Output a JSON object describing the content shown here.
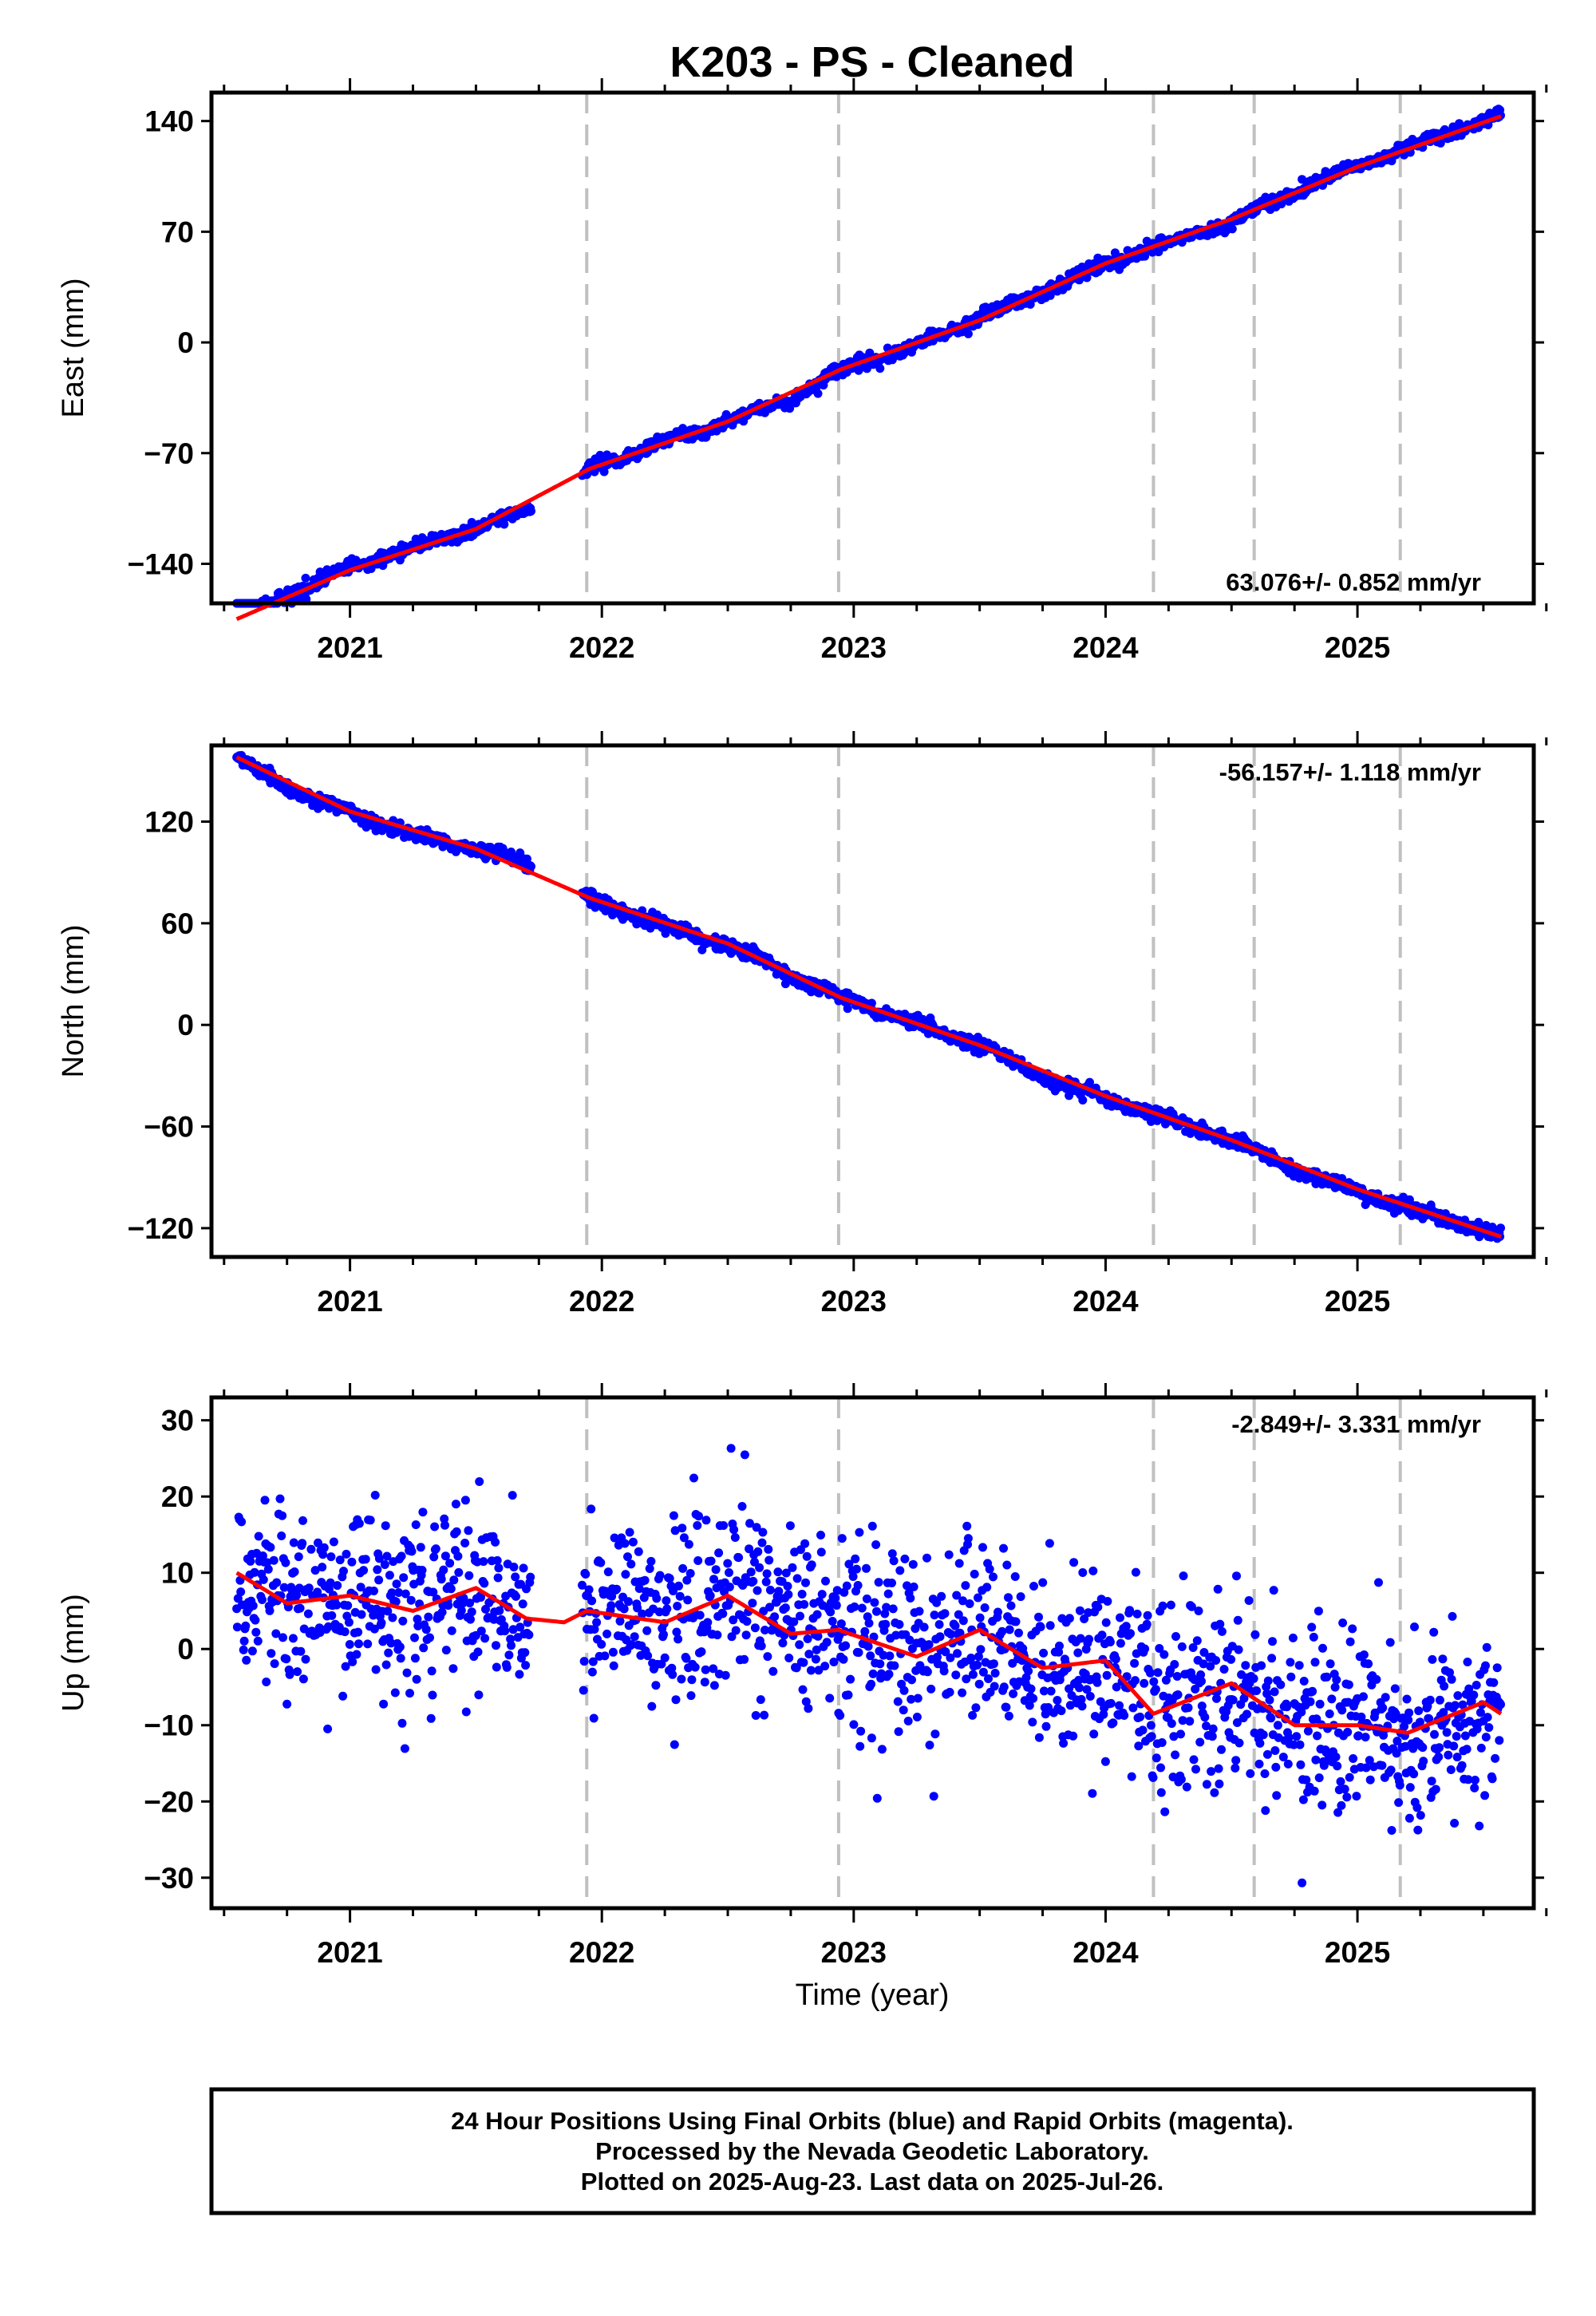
{
  "title": "K203  - PS - Cleaned",
  "xlabel": "Time (year)",
  "x_tick_labels": [
    "2021",
    "2022",
    "2023",
    "2024",
    "2025"
  ],
  "footer": {
    "line1": "24 Hour Positions Using Final Orbits (blue) and Rapid Orbits (magenta).",
    "line2": "Processed by the Nevada Geodetic Laboratory.",
    "line3": "Plotted on 2025-Aug-23. Last data on 2025-Jul-26."
  },
  "colors": {
    "points": "#0000ff",
    "fit": "#ff0000",
    "breaks": "#c0c0c0",
    "axes": "#000000"
  },
  "chart_data": [
    {
      "type": "scatter",
      "ylabel": "East (mm)",
      "rate_label": "63.076+/- 0.852 mm/yr",
      "xlim": [
        2020.45,
        2025.7
      ],
      "ylim": [
        -165,
        158
      ],
      "yticks": [
        -140,
        -70,
        0,
        70,
        140
      ],
      "y_tick_labels": [
        "−140",
        "−70",
        "0",
        "70",
        "140"
      ],
      "equipment_changes": [
        2021.94,
        2022.94,
        2024.19,
        2024.59,
        2025.17
      ],
      "data_gap": [
        2021.72,
        2021.92
      ],
      "series": [
        {
          "role": "observations",
          "x": [
            2020.55,
            2020.75,
            2021.0,
            2021.25,
            2021.5,
            2021.7,
            2021.95,
            2022.25,
            2022.5,
            2022.75,
            2022.95,
            2023.25,
            2023.5,
            2023.75,
            2024.0,
            2024.25,
            2024.5,
            2024.75,
            2025.0,
            2025.25,
            2025.5,
            2025.57
          ],
          "y": [
            -175,
            -160,
            -142,
            -130,
            -118,
            -105,
            -80,
            -63,
            -50,
            -36,
            -17,
            -2,
            16,
            32,
            50,
            63,
            76,
            95,
            112,
            126,
            140,
            144
          ]
        },
        {
          "role": "fit",
          "x": [
            2020.55,
            2021.0,
            2021.5,
            2021.95,
            2022.5,
            2022.95,
            2023.5,
            2024.0,
            2024.5,
            2025.0,
            2025.57
          ],
          "y": [
            -175,
            -144,
            -118,
            -80,
            -50,
            -17,
            14,
            50,
            78,
            111,
            143
          ]
        }
      ]
    },
    {
      "type": "scatter",
      "ylabel": "North (mm)",
      "rate_label": "-56.157+/- 1.118 mm/yr",
      "xlim": [
        2020.45,
        2025.7
      ],
      "ylim": [
        -137,
        165
      ],
      "yticks": [
        -120,
        -60,
        0,
        60,
        120
      ],
      "y_tick_labels": [
        "−120",
        "−60",
        "0",
        "60",
        "120"
      ],
      "equipment_changes": [
        2021.94,
        2022.94,
        2024.19,
        2024.59,
        2025.17
      ],
      "data_gap": [
        2021.72,
        2021.92
      ],
      "series": [
        {
          "role": "observations",
          "x": [
            2020.55,
            2020.75,
            2021.0,
            2021.25,
            2021.5,
            2021.7,
            2021.95,
            2022.25,
            2022.5,
            2022.75,
            2022.95,
            2023.25,
            2023.5,
            2023.75,
            2024.0,
            2024.25,
            2024.5,
            2024.75,
            2025.0,
            2025.25,
            2025.5,
            2025.57
          ],
          "y": [
            158,
            140,
            126,
            112,
            104,
            95,
            75,
            58,
            47,
            30,
            16,
            0,
            -12,
            -31,
            -43,
            -56,
            -68,
            -85,
            -98,
            -111,
            -121,
            -125
          ]
        },
        {
          "role": "fit",
          "x": [
            2020.55,
            2021.0,
            2021.5,
            2021.95,
            2022.5,
            2022.95,
            2023.5,
            2024.0,
            2024.5,
            2025.0,
            2025.57
          ],
          "y": [
            158,
            126,
            104,
            75,
            48,
            16,
            -12,
            -42,
            -68,
            -97,
            -125
          ]
        }
      ]
    },
    {
      "type": "scatter",
      "ylabel": "Up (mm)",
      "rate_label": "-2.849+/- 3.331 mm/yr",
      "xlim": [
        2020.45,
        2025.7
      ],
      "ylim": [
        -34,
        33
      ],
      "yticks": [
        -30,
        -20,
        -10,
        0,
        10,
        20,
        30
      ],
      "y_tick_labels": [
        "−30",
        "−20",
        "−10",
        "0",
        "10",
        "20",
        "30"
      ],
      "equipment_changes": [
        2021.94,
        2022.94,
        2024.19,
        2024.59,
        2025.17
      ],
      "data_gap": [
        2021.72,
        2021.92
      ],
      "series": [
        {
          "role": "observations",
          "x": [
            2020.55,
            2020.75,
            2021.0,
            2021.25,
            2021.5,
            2021.7,
            2021.95,
            2022.25,
            2022.5,
            2022.75,
            2022.95,
            2023.25,
            2023.5,
            2023.75,
            2024.0,
            2024.25,
            2024.5,
            2024.75,
            2025.0,
            2025.25,
            2025.5,
            2025.57
          ],
          "y": [
            9,
            6,
            7,
            5,
            8,
            4,
            5,
            4,
            7,
            3,
            2,
            0,
            3,
            -2,
            -2,
            -7,
            -5,
            -9,
            -10,
            -11,
            -7,
            -8
          ]
        },
        {
          "role": "fit",
          "x": [
            2020.55,
            2020.75,
            2021.0,
            2021.25,
            2021.5,
            2021.7,
            2021.85,
            2021.94,
            2022.25,
            2022.5,
            2022.75,
            2022.94,
            2023.25,
            2023.5,
            2023.75,
            2024.0,
            2024.19,
            2024.5,
            2024.75,
            2025.0,
            2025.2,
            2025.5,
            2025.57
          ],
          "y": [
            10,
            6,
            7,
            5,
            8,
            4,
            3.5,
            5,
            3.5,
            7,
            2,
            2.5,
            -1,
            2.5,
            -2.5,
            -1.5,
            -8.5,
            -4.5,
            -10,
            -10,
            -11,
            -7,
            -8.5
          ]
        }
      ]
    }
  ]
}
